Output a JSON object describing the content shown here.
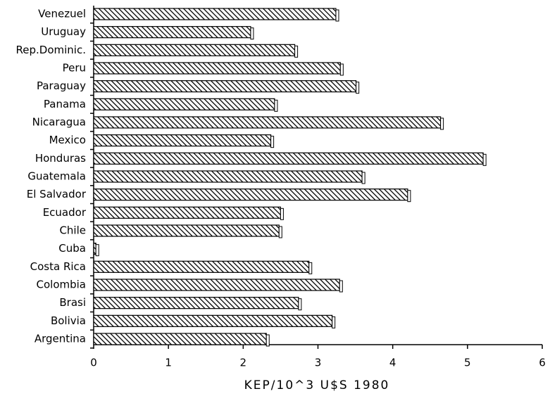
{
  "chart_data": {
    "type": "hbar",
    "categories": [
      "Argentina",
      "Bolivia",
      "Brasi",
      "Colombia",
      "Costa Rica",
      "Cuba",
      "Chile",
      "Ecuador",
      "El Salvador",
      "Guatemala",
      "Honduras",
      "Mexico",
      "Nicaragua",
      "Panama",
      "Paraguay",
      "Peru",
      "Rep.Dominic.",
      "Uruguay",
      "Venezuel"
    ],
    "values": [
      2.31,
      3.19,
      2.74,
      3.29,
      2.88,
      0.03,
      2.48,
      2.5,
      4.2,
      3.59,
      5.21,
      2.37,
      4.64,
      2.42,
      3.51,
      3.3,
      2.69,
      2.1,
      3.24
    ],
    "color": "#000000",
    "xlim": [
      0,
      6
    ],
    "xticks": [
      0,
      1,
      2,
      3,
      4,
      5,
      6
    ],
    "xlabel": "KEP/10^3 U$S 1980"
  }
}
